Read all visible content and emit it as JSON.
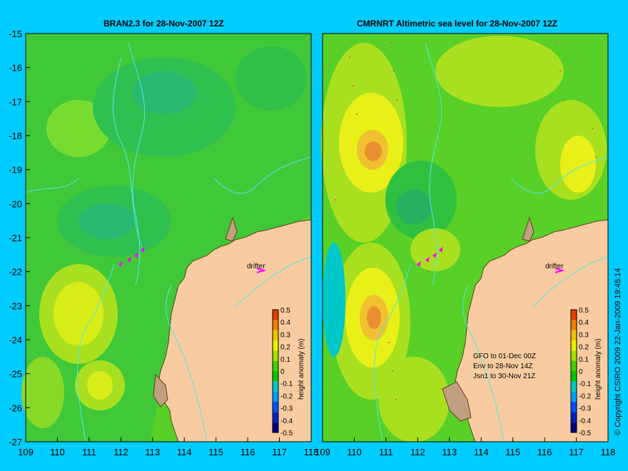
{
  "background_color": "#00ccff",
  "panels": {
    "left": {
      "title": "BRAN2.3 for 28-Nov-2007 12Z",
      "drifter_label": "drifter",
      "colorbar_label": "height anomaly (m)"
    },
    "right": {
      "title": "CMRNRT Altimetric sea level  for 28-Nov-2007 12Z",
      "drifter_label": "drifter",
      "colorbar_label": "height anomaly (m)",
      "info_lines": [
        "GFO to 01-Dec 00Z",
        "Env to 28-Nov 14Z",
        "Jsn1 to 30-Nov 21Z"
      ]
    }
  },
  "axes": {
    "lat_ticks": [
      "-15",
      "-16",
      "-17",
      "-18",
      "-19",
      "-20",
      "-21",
      "-22",
      "-23",
      "-24",
      "-25",
      "-26",
      "-27"
    ],
    "lon_ticks": [
      "109",
      "110",
      "111",
      "112",
      "113",
      "114",
      "115",
      "116",
      "117",
      "118"
    ]
  },
  "colorbar": {
    "ticks": [
      "0.5",
      "0.4",
      "0.3",
      "0.2",
      "0.1",
      "0",
      "-0.1",
      "-0.2",
      "-0.3",
      "-0.4",
      "-0.5"
    ],
    "colors": [
      "#000080",
      "#0020c0",
      "#0050ff",
      "#00a0ff",
      "#00c8c8",
      "#00c800",
      "#40d000",
      "#a0e000",
      "#e8f000",
      "#f0c000",
      "#f08000",
      "#e04000"
    ]
  },
  "copyright": "© Copyright CSIRO 2009  22-Jan-2009 19:45:14"
}
